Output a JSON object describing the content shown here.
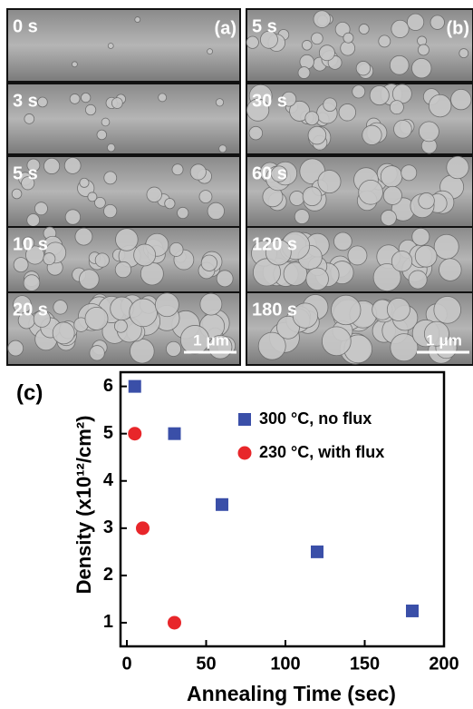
{
  "panels": {
    "left": {
      "tag": "(a)",
      "times": [
        "0 s",
        "3 s",
        "5 s",
        "10 s",
        "20 s"
      ],
      "scale": "1 μm"
    },
    "right": {
      "tag": "(b)",
      "times": [
        "5 s",
        "30 s",
        "60 s",
        "120 s",
        "180 s"
      ],
      "scale": "1 μm"
    }
  },
  "chart_data": {
    "type": "scatter",
    "panel_label": "(c)",
    "x_label": "Annealing Time (sec)",
    "y_label": "Density (x10¹²/cm²)",
    "xlim": [
      -4,
      200
    ],
    "xticks": [
      0,
      50,
      100,
      150,
      200
    ],
    "ylim": [
      0.5,
      6.3
    ],
    "yticks": [
      1,
      2,
      3,
      4,
      5,
      6
    ],
    "series": [
      {
        "name": "300 °C, no flux",
        "color": "#3a4fa8",
        "marker": "square",
        "x": [
          5,
          30,
          60,
          120,
          180
        ],
        "values": [
          6,
          5,
          3.5,
          2.5,
          1.25
        ]
      },
      {
        "name": "230 °C, with flux",
        "color": "#e8262a",
        "marker": "circle",
        "x": [
          5,
          10,
          30
        ],
        "values": [
          5,
          3,
          1
        ]
      }
    ]
  }
}
